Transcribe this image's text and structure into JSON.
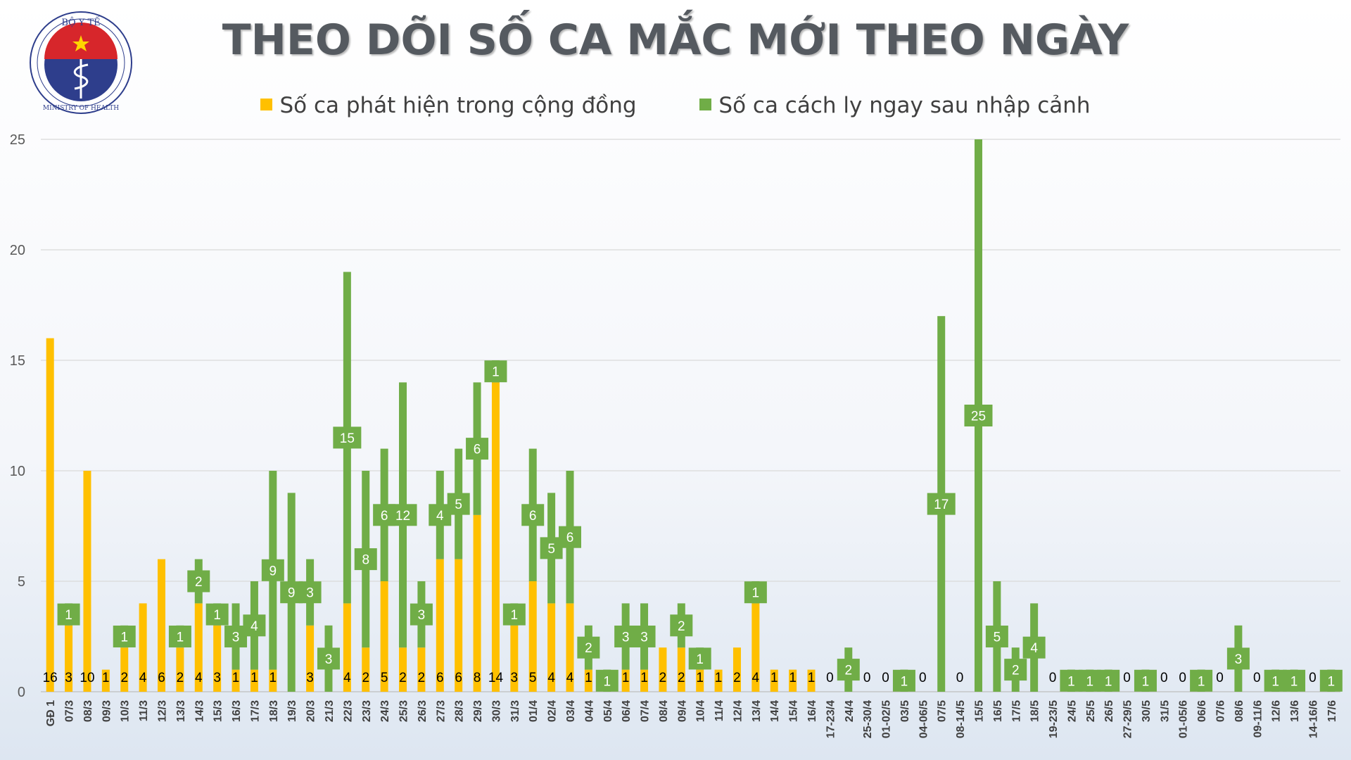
{
  "header": {
    "title": "THEO DÕI SỐ CA MẮC MỚI THEO NGÀY",
    "logo_top_text": "BỘ Y TẾ",
    "logo_bottom_text": "MINISTRY OF HEALTH"
  },
  "chart_data": {
    "type": "bar",
    "stacked": true,
    "ylim": [
      0,
      25
    ],
    "yticks": [
      0,
      5,
      10,
      15,
      20,
      25
    ],
    "grid": true,
    "legend_position": "top-center",
    "categories": [
      "GĐ 1",
      "07/3",
      "08/3",
      "09/3",
      "10/3",
      "11/3",
      "12/3",
      "13/3",
      "14/3",
      "15/3",
      "16/3",
      "17/3",
      "18/3",
      "19/3",
      "20/3",
      "21/3",
      "22/3",
      "23/3",
      "24/3",
      "25/3",
      "26/3",
      "27/3",
      "28/3",
      "29/3",
      "30/3",
      "31/3",
      "01/4",
      "02/4",
      "03/4",
      "04/4",
      "05/4",
      "06/4",
      "07/4",
      "08/4",
      "09/4",
      "10/4",
      "11/4",
      "12/4",
      "13/4",
      "14/4",
      "15/4",
      "16/4",
      "17-23/4",
      "24/4",
      "25-30/4",
      "01-02/5",
      "03/5",
      "04-06/5",
      "07/5",
      "08-14/5",
      "15/5",
      "16/5",
      "17/5",
      "18/5",
      "19-23/5",
      "24/5",
      "25/5",
      "26/5",
      "27-29/5",
      "30/5",
      "31/5",
      "01-05/6",
      "06/6",
      "07/6",
      "08/6",
      "09-11/6",
      "12/6",
      "13/6",
      "14-16/6",
      "17/6"
    ],
    "series": [
      {
        "name": "Số ca phát hiện trong cộng đồng",
        "color": "#ffc000",
        "values": [
          16,
          3,
          10,
          1,
          2,
          4,
          6,
          2,
          4,
          3,
          1,
          1,
          1,
          0,
          3,
          0,
          4,
          2,
          5,
          2,
          2,
          6,
          6,
          8,
          14,
          3,
          5,
          4,
          4,
          1,
          0,
          1,
          1,
          2,
          2,
          1,
          1,
          2,
          4,
          1,
          1,
          1,
          0,
          0,
          0,
          0,
          0,
          0,
          0,
          0,
          0,
          0,
          0,
          0,
          0,
          0,
          0,
          0,
          0,
          0,
          0,
          0,
          0,
          0,
          0,
          0,
          0,
          0,
          0,
          0
        ]
      },
      {
        "name": "Số ca cách ly ngay sau nhập cảnh",
        "color": "#70ad47",
        "values": [
          0,
          1,
          0,
          0,
          1,
          0,
          0,
          1,
          2,
          1,
          3,
          4,
          9,
          9,
          3,
          3,
          15,
          8,
          6,
          12,
          3,
          4,
          5,
          6,
          1,
          1,
          6,
          5,
          6,
          2,
          1,
          3,
          3,
          0,
          2,
          1,
          0,
          0,
          1,
          0,
          0,
          0,
          0,
          2,
          0,
          0,
          1,
          0,
          17,
          0,
          25,
          5,
          2,
          4,
          0,
          1,
          1,
          1,
          0,
          1,
          0,
          0,
          1,
          0,
          3,
          0,
          1,
          1,
          0,
          1
        ]
      }
    ]
  }
}
